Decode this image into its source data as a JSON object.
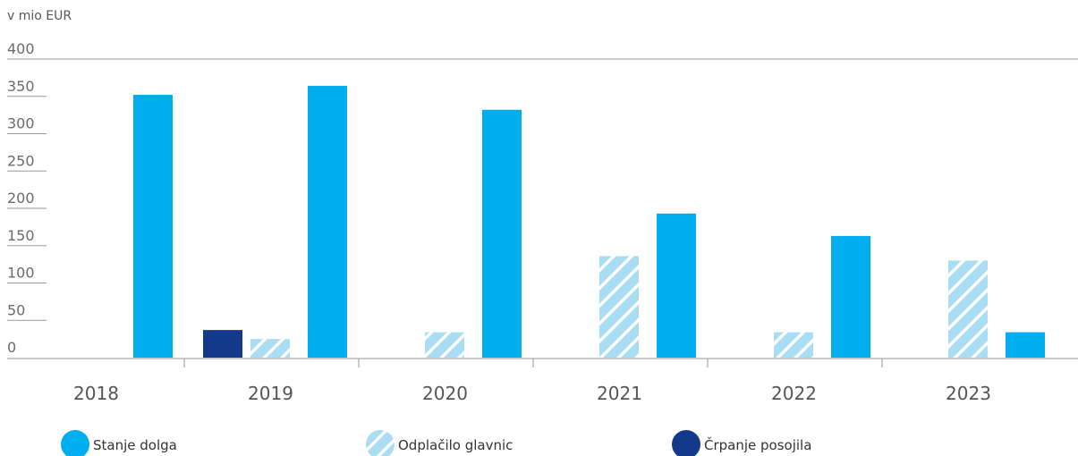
{
  "chart_data": {
    "type": "bar",
    "ylabel": "v mio EUR",
    "ylim": [
      0,
      400
    ],
    "yticks": [
      "0",
      "50",
      "100",
      "150",
      "200",
      "250",
      "300",
      "350",
      "400"
    ],
    "categories": [
      "2018",
      "2019",
      "2020",
      "2021",
      "2022",
      "2023"
    ],
    "series": [
      {
        "name": "Črpanje posojila",
        "color": "#12398a",
        "pattern": "solid",
        "values": [
          0,
          37,
          0,
          0,
          0,
          0
        ]
      },
      {
        "name": "Odplačilo glavnic",
        "color": "#a9ddf3",
        "pattern": "hatch",
        "values": [
          0,
          25,
          34,
          136,
          34,
          130
        ]
      },
      {
        "name": "Stanje dolga",
        "color": "#00aeef",
        "pattern": "solid",
        "values": [
          352,
          364,
          332,
          193,
          163,
          34
        ]
      }
    ],
    "legend": [
      "Stanje dolga",
      "Odplačilo glavnic",
      "Črpanje posojila"
    ],
    "legend_position": "bottom",
    "grid": false
  }
}
